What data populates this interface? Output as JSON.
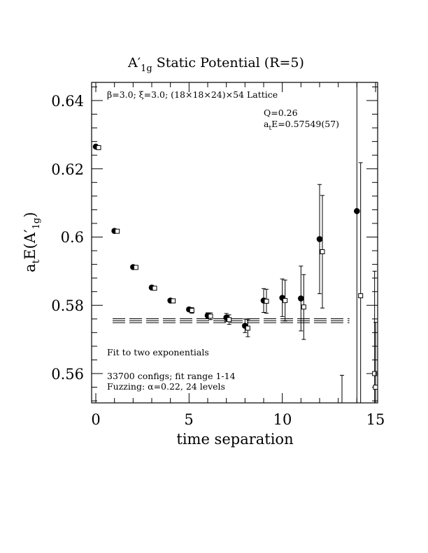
{
  "chart_data": {
    "type": "scatter",
    "title": {
      "main": "A",
      "prime": "′",
      "sub": "1g",
      "rest": " Static Potential (R=5)"
    },
    "xlabel": "time separation",
    "ylabel": {
      "a": "a",
      "a_sub": "t",
      "e": "E(A",
      "prime": "′",
      "sub": "1g",
      "close": ")"
    },
    "xlim": [
      0,
      15
    ],
    "ylim": [
      0.551,
      0.645
    ],
    "xticks": [
      "0",
      "5",
      "10",
      "15"
    ],
    "yticks": [
      "0.56",
      "0.58",
      "0.6",
      "0.62",
      "0.64"
    ],
    "annotations": {
      "lattice": "β=3.0; ξ=3.0; (18×18×24)×54 Lattice",
      "q": "Q=0.26",
      "energy_a": "a",
      "energy_sub": "t",
      "energy_rest": "E=0.57549(57)",
      "fit": "Fit to two exponentials",
      "configs": "33700 configs; fit range 1-14",
      "fuzzing": "Fuzzing: α=0.22, 24 levels"
    },
    "fit": {
      "value": 0.57549,
      "error": 0.00057,
      "x_range": [
        0.9,
        13.6
      ]
    },
    "series": [
      {
        "marker": "filled-circle",
        "x": [
          0,
          1,
          2,
          3,
          4,
          5,
          6,
          7,
          8,
          9,
          10,
          11,
          12,
          14
        ],
        "y": [
          0.6265,
          0.6018,
          0.5912,
          0.5852,
          0.5814,
          0.5788,
          0.577,
          0.5764,
          0.574,
          0.5814,
          0.5822,
          0.582,
          0.5994,
          0.6076
        ],
        "err": [
          0.0003,
          0.0003,
          0.0004,
          0.0004,
          0.0005,
          0.0006,
          0.0008,
          0.0012,
          0.002,
          0.0035,
          0.0055,
          0.0095,
          0.016,
          0.06
        ]
      },
      {
        "marker": "open-square",
        "x": [
          0.15,
          1.15,
          2.15,
          3.15,
          4.15,
          5.15,
          6.15,
          7.15,
          8.15,
          9.15,
          10.15,
          11.15,
          12.15,
          13.2,
          14.2,
          14.95,
          15.0
        ],
        "y": [
          0.6262,
          0.6017,
          0.5911,
          0.585,
          0.5813,
          0.5785,
          0.5768,
          0.5758,
          0.5733,
          0.5812,
          0.5814,
          0.5795,
          0.5957,
          0.551,
          0.5828,
          0.56,
          0.556
        ],
        "err": [
          0.0003,
          0.0003,
          0.0004,
          0.0005,
          0.0006,
          0.0008,
          0.001,
          0.0014,
          0.0025,
          0.0035,
          0.006,
          0.0095,
          0.0165,
          0.0085,
          0.039,
          0.03,
          0.019
        ]
      }
    ]
  }
}
